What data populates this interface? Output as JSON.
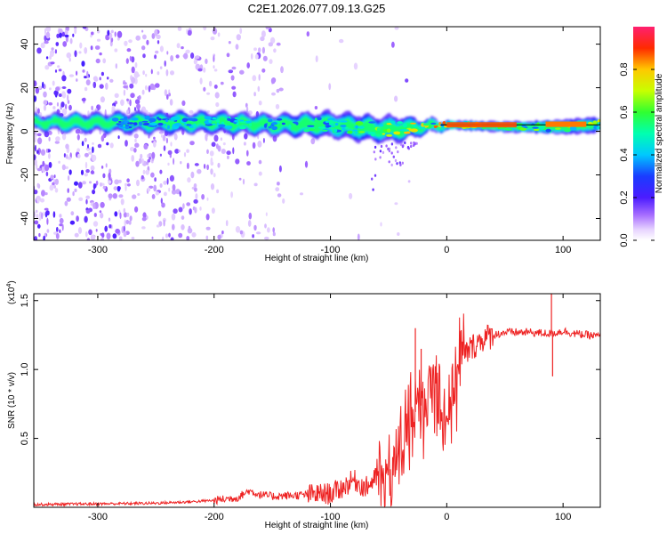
{
  "title": "C2E1.2026.077.09.13.G25",
  "chart_data": [
    {
      "type": "heatmap",
      "name": "spectrogram",
      "xlabel": "Height of straight line (km)",
      "ylabel": "Frequency (Hz)",
      "xlim": [
        -355,
        132
      ],
      "ylim": [
        -50,
        48
      ],
      "xticks": [
        -300,
        -200,
        -100,
        0,
        100
      ],
      "xtick_labels": [
        "-300",
        "-200",
        "-100",
        "0",
        "100"
      ],
      "yticks": [
        -40,
        -20,
        0,
        20,
        40
      ],
      "ytick_labels": [
        "-40",
        "-20",
        "0",
        "20",
        "40"
      ],
      "colorbar": {
        "label": "Normalized spectral amplitude",
        "range": [
          0,
          1
        ],
        "ticks": [
          0.0,
          0.2,
          0.4,
          0.6,
          0.8
        ],
        "tick_labels": [
          "0.0",
          "0.2",
          "0.4",
          "0.6",
          "0.8"
        ]
      },
      "band": {
        "x": [
          -355,
          -280,
          -200,
          -150,
          -100,
          -60,
          -40,
          -20,
          0,
          50,
          100,
          132
        ],
        "center_freq": [
          4,
          4,
          4,
          3,
          3,
          1,
          1,
          2,
          3,
          2,
          2,
          3
        ],
        "halfwidth": [
          3,
          4,
          4,
          4,
          5,
          5,
          5,
          3,
          2,
          2,
          3,
          3
        ],
        "peak_amplitude": [
          0.35,
          0.4,
          0.5,
          0.55,
          0.6,
          0.75,
          0.8,
          0.85,
          0.9,
          0.6,
          0.75,
          0.8
        ]
      }
    },
    {
      "type": "line",
      "name": "snr",
      "xlabel": "Height of straight line (km)",
      "ylabel": "SNR (10 * v/v)",
      "yscale_label": "(x10",
      "yscale_exp": "4",
      "yscale_close": ")",
      "xlim": [
        -355,
        132
      ],
      "ylim": [
        0,
        1.55
      ],
      "xticks": [
        -300,
        -200,
        -100,
        0,
        100
      ],
      "xtick_labels": [
        "-300",
        "-200",
        "-100",
        "0",
        "100"
      ],
      "yticks": [
        0.5,
        1.0,
        1.5
      ],
      "ytick_labels": [
        "0.5",
        "1.0",
        "1.5"
      ],
      "color": "#ee2222",
      "series": [
        {
          "name": "SNR",
          "x": [
            -355,
            -300,
            -250,
            -220,
            -200,
            -180,
            -170,
            -160,
            -150,
            -120,
            -100,
            -90,
            -80,
            -70,
            -60,
            -50,
            -45,
            -40,
            -35,
            -30,
            -25,
            -20,
            -15,
            -10,
            -5,
            0,
            5,
            10,
            20,
            30,
            40,
            50,
            70,
            90,
            100,
            110,
            120,
            132
          ],
          "values": [
            0.02,
            0.025,
            0.03,
            0.04,
            0.05,
            0.07,
            0.12,
            0.09,
            0.08,
            0.09,
            0.1,
            0.14,
            0.2,
            0.14,
            0.22,
            0.18,
            0.3,
            0.42,
            0.55,
            0.65,
            0.72,
            0.75,
            0.8,
            0.85,
            0.75,
            0.7,
            0.85,
            1.05,
            1.15,
            1.22,
            1.25,
            1.27,
            1.27,
            1.26,
            1.28,
            1.26,
            1.25,
            1.24
          ]
        }
      ],
      "spikes": [
        {
          "x": -27,
          "y": 1.3
        },
        {
          "x": -22,
          "y": 1.15
        },
        {
          "x": 90,
          "y": 1.55
        },
        {
          "x": 91,
          "y": 0.95
        }
      ]
    }
  ]
}
